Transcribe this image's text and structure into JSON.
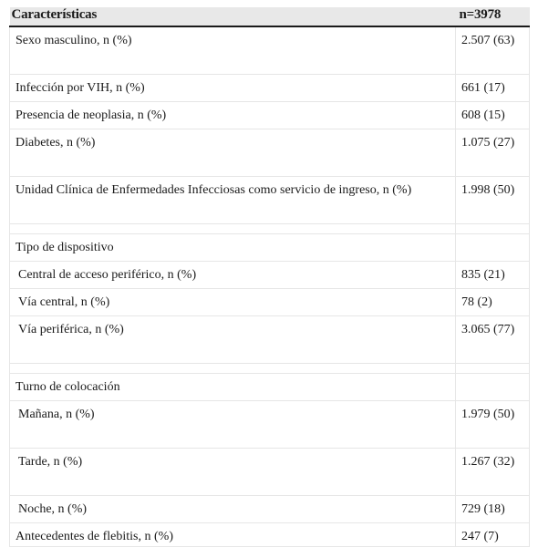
{
  "table": {
    "header": {
      "col1": "Características",
      "col2": "n=3978"
    },
    "rows": [
      {
        "label": "Sexo masculino, n (%)",
        "value": "2.507 (63)"
      },
      {
        "label": "Infección por VIH, n (%)",
        "value": "661 (17)"
      },
      {
        "label": "Presencia de neoplasia, n (%)",
        "value": "608 (15)"
      },
      {
        "label": "Diabetes, n (%)",
        "value": "1.075 (27)"
      },
      {
        "label": "Unidad Clínica de Enfermedades Infecciosas como servicio de ingreso, n (%)",
        "value": "1.998 (50)"
      },
      {
        "label": "Tipo de dispositivo",
        "value": ""
      },
      {
        "label": "Central de acceso periférico, n (%)",
        "value": "835 (21)"
      },
      {
        "label": "Vía central, n (%)",
        "value": "78 (2)"
      },
      {
        "label": "Vía periférica, n (%)",
        "value": "3.065 (77)"
      },
      {
        "label": "Turno de colocación",
        "value": ""
      },
      {
        "label": "Mañana, n (%)",
        "value": "1.979 (50)"
      },
      {
        "label": "Tarde, n (%)",
        "value": "1.267 (32)"
      },
      {
        "label": "Noche, n (%)",
        "value": "729 (18)"
      },
      {
        "label": "Antecedentes de flebitis, n (%)",
        "value": "247 (7)"
      }
    ]
  }
}
